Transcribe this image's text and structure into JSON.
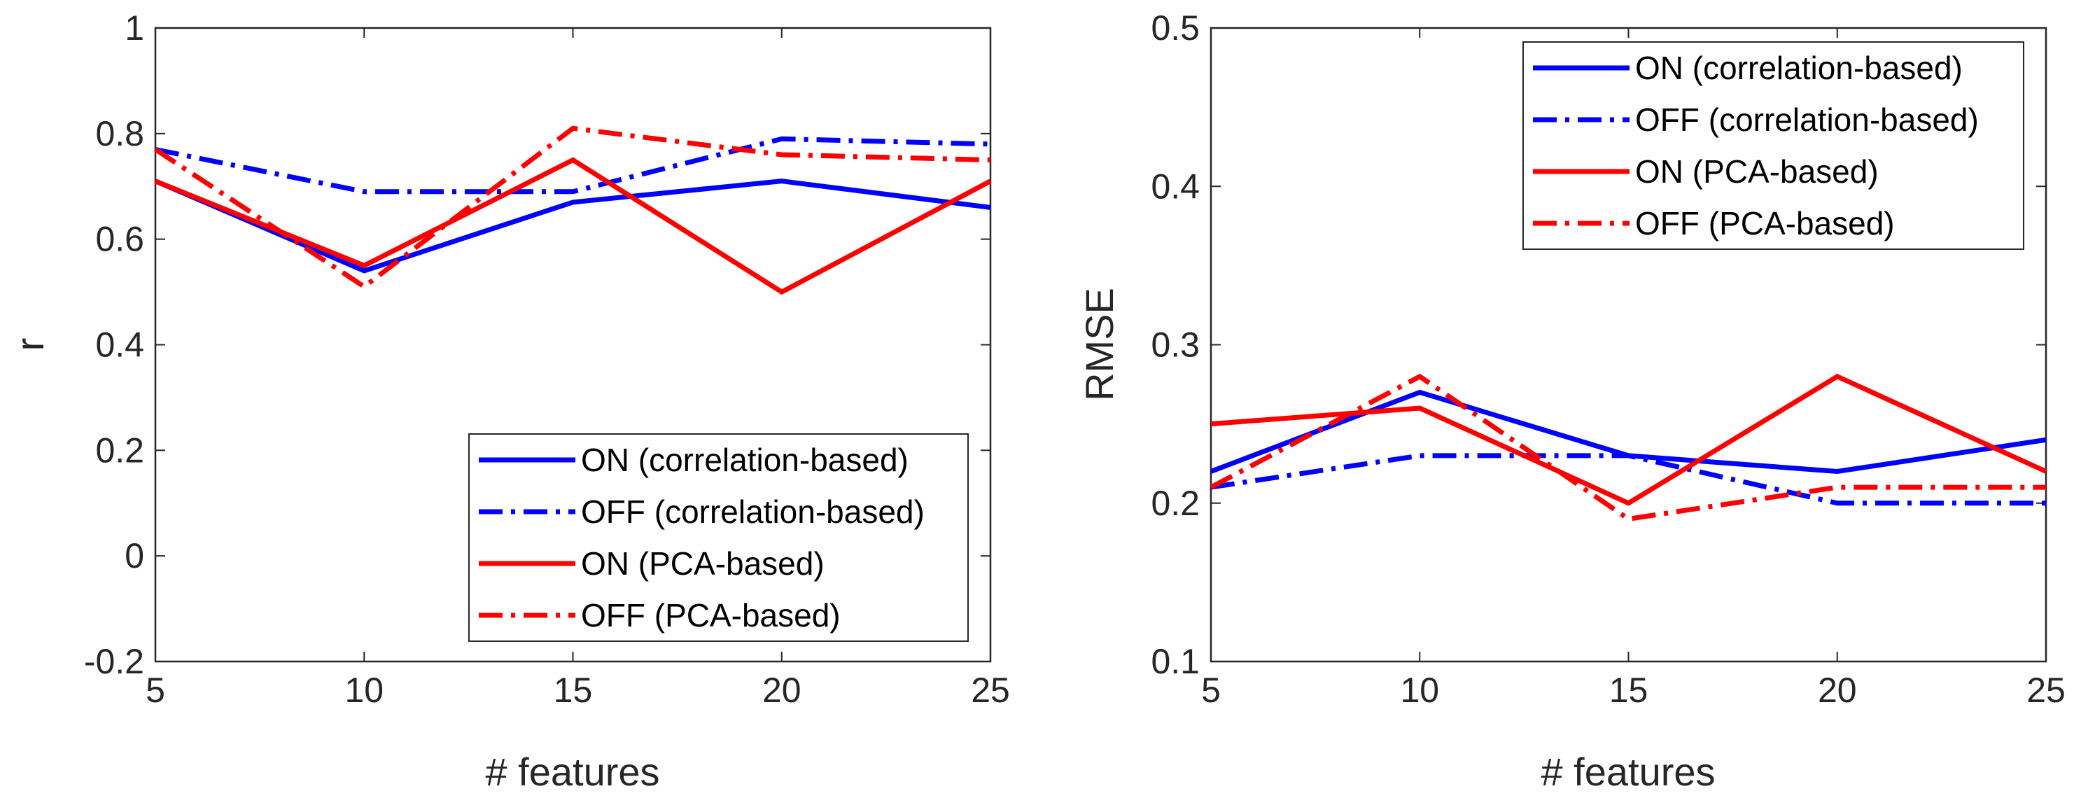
{
  "chart_data": [
    {
      "type": "line",
      "title": "",
      "xlabel": "# features",
      "ylabel": "r",
      "x": [
        5,
        10,
        15,
        20,
        25
      ],
      "xlim": [
        5,
        25
      ],
      "ylim": [
        -0.2,
        1
      ],
      "xticks": [
        "5",
        "10",
        "15",
        "20",
        "25"
      ],
      "yticks": [
        "-0.2",
        "0",
        "0.2",
        "0.4",
        "0.6",
        "0.8",
        "1"
      ],
      "legend_position": "bottom-right",
      "grid": false,
      "series": [
        {
          "name": "ON (correlation-based)",
          "color": "#0000ff",
          "style": "solid",
          "values": [
            0.71,
            0.54,
            0.67,
            0.71,
            0.66
          ]
        },
        {
          "name": "OFF (correlation-based)",
          "color": "#0000ff",
          "style": "dashdot",
          "values": [
            0.77,
            0.69,
            0.69,
            0.79,
            0.78
          ]
        },
        {
          "name": "ON (PCA-based)",
          "color": "#ff0000",
          "style": "solid",
          "values": [
            0.71,
            0.55,
            0.75,
            0.5,
            0.71
          ]
        },
        {
          "name": "OFF (PCA-based)",
          "color": "#ff0000",
          "style": "dashdot",
          "values": [
            0.77,
            0.51,
            0.81,
            0.76,
            0.75
          ]
        }
      ]
    },
    {
      "type": "line",
      "title": "",
      "xlabel": "# features",
      "ylabel": "RMSE",
      "x": [
        5,
        10,
        15,
        20,
        25
      ],
      "xlim": [
        5,
        25
      ],
      "ylim": [
        0.1,
        0.5
      ],
      "xticks": [
        "5",
        "10",
        "15",
        "20",
        "25"
      ],
      "yticks": [
        "0.1",
        "0.2",
        "0.3",
        "0.4",
        "0.5"
      ],
      "legend_position": "top-right",
      "grid": false,
      "series": [
        {
          "name": "ON (correlation-based)",
          "color": "#0000ff",
          "style": "solid",
          "values": [
            0.22,
            0.27,
            0.23,
            0.22,
            0.24
          ]
        },
        {
          "name": "OFF (correlation-based)",
          "color": "#0000ff",
          "style": "dashdot",
          "values": [
            0.21,
            0.23,
            0.23,
            0.2,
            0.2
          ]
        },
        {
          "name": "ON (PCA-based)",
          "color": "#ff0000",
          "style": "solid",
          "values": [
            0.25,
            0.26,
            0.2,
            0.28,
            0.22
          ]
        },
        {
          "name": "OFF (PCA-based)",
          "color": "#ff0000",
          "style": "dashdot",
          "values": [
            0.21,
            0.28,
            0.19,
            0.21,
            0.21
          ]
        }
      ]
    }
  ]
}
